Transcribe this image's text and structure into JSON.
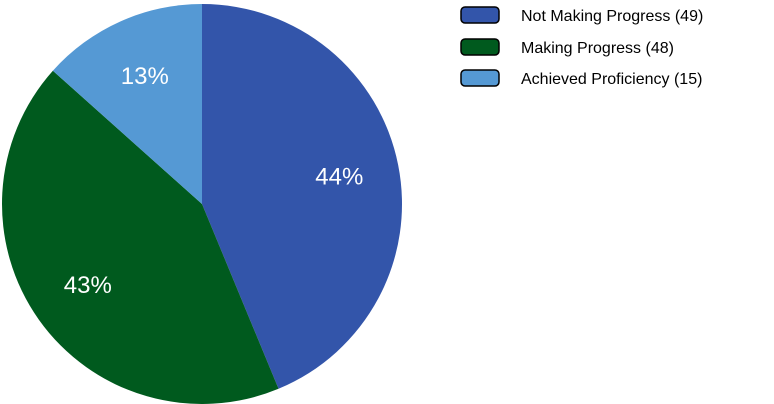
{
  "chart_data": {
    "type": "pie",
    "slices": [
      {
        "label": "Not Making Progress",
        "count": 49,
        "percent_label": "44%",
        "color": "#3355aa"
      },
      {
        "label": "Making Progress",
        "count": 48,
        "percent_label": "43%",
        "color": "#005a1e"
      },
      {
        "label": "Achieved Proficiency",
        "count": 15,
        "percent_label": "13%",
        "color": "#5599d4"
      }
    ],
    "legend": {
      "placement": "top-right",
      "entries": [
        "Not Making Progress (49)",
        "Making Progress (48)",
        "Achieved Proficiency (15)"
      ]
    }
  }
}
